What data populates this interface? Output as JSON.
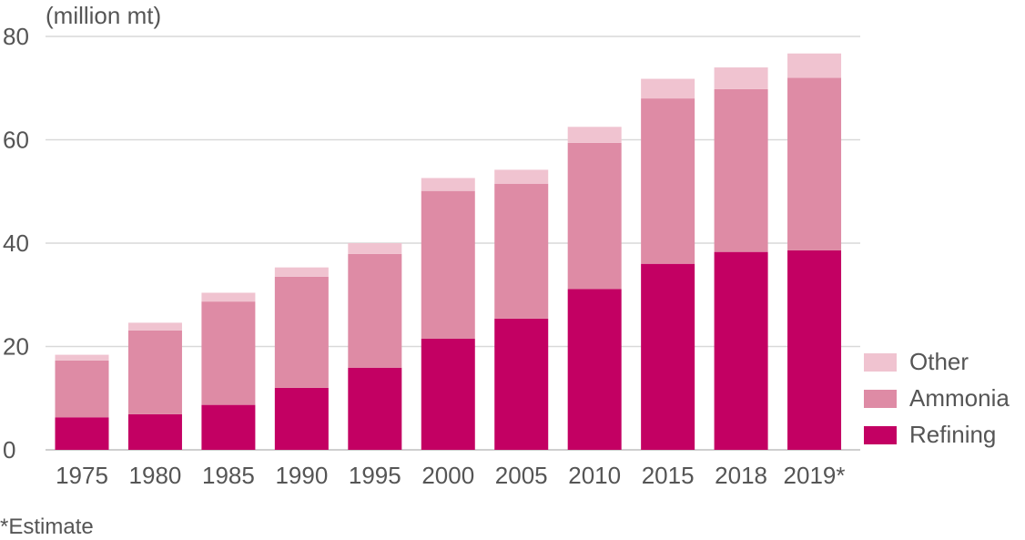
{
  "chart_data": {
    "type": "bar",
    "stacked": true,
    "unit_label": "(million mt)",
    "categories": [
      "1975",
      "1980",
      "1985",
      "1990",
      "1995",
      "2000",
      "2005",
      "2010",
      "2015",
      "2018",
      "2019*"
    ],
    "series": [
      {
        "name": "Refining",
        "color": "#c30063",
        "values": [
          6.3,
          6.9,
          8.7,
          12.0,
          15.9,
          21.5,
          25.4,
          31.1,
          36.0,
          38.3,
          38.6
        ]
      },
      {
        "name": "Ammonia",
        "color": "#de8ba5",
        "values": [
          11.0,
          16.2,
          20.0,
          21.5,
          22.0,
          28.6,
          26.1,
          28.3,
          32.0,
          31.5,
          33.4
        ]
      },
      {
        "name": "Other",
        "color": "#f0c3d0",
        "values": [
          1.1,
          1.5,
          1.7,
          1.8,
          2.1,
          2.5,
          2.7,
          3.1,
          3.8,
          4.2,
          4.7
        ]
      }
    ],
    "yticks": [
      0,
      20,
      40,
      60,
      80
    ],
    "ylim": [
      0,
      80
    ],
    "grid": true,
    "legend_position": "right-bottom",
    "footnote": "*Estimate"
  }
}
